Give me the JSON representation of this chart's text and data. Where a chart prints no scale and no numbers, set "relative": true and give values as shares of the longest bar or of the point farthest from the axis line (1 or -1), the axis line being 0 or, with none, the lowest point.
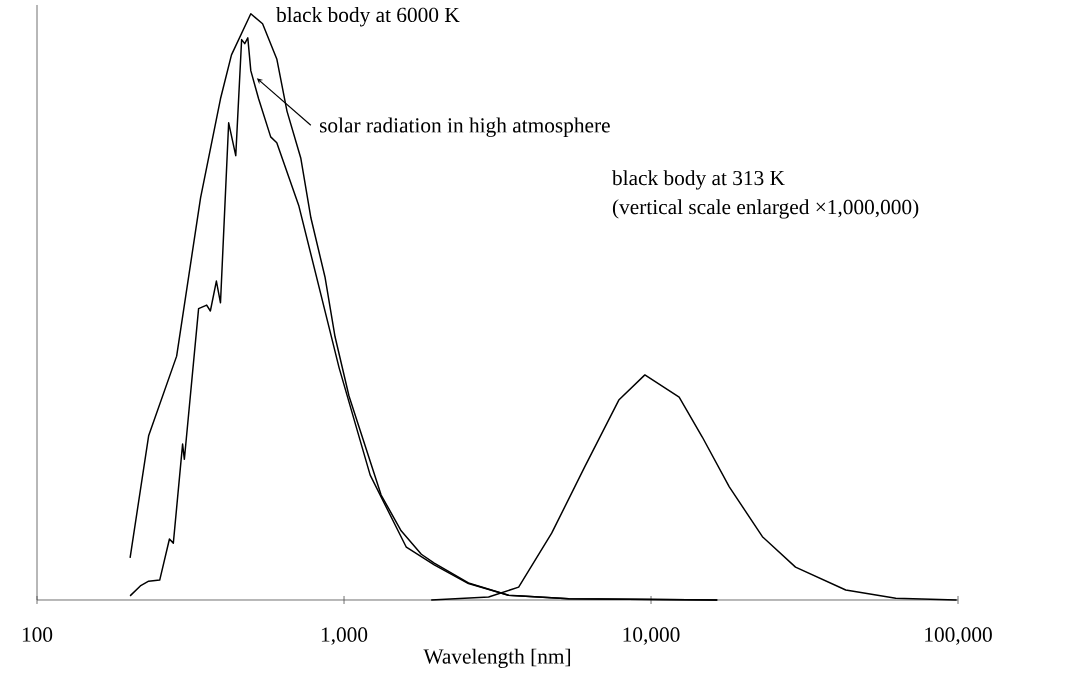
{
  "chart_data": {
    "type": "line",
    "relative": true,
    "log": "x",
    "xlabel": "Wavelength [nm]",
    "xlim": [
      100,
      100000
    ],
    "xticks": [
      100,
      {
        "value": 1000,
        "label": "1,000"
      },
      {
        "value": 10000,
        "label": "10,000"
      },
      {
        "value": 100000,
        "label": "100,000"
      }
    ],
    "series": [
      {
        "color": "#000000",
        "x": [
          201,
          231,
          285,
          341,
          396,
          430,
          497,
          543,
          604,
          652,
          723,
          780,
          867,
          935,
          1038,
          1321,
          1535,
          1786,
          1968,
          2543,
          3434,
          5395,
          16440
        ],
        "values": [
          0.072,
          0.28,
          0.416,
          0.686,
          0.855,
          0.93,
          1.0,
          0.983,
          0.923,
          0.834,
          0.754,
          0.652,
          0.551,
          0.449,
          0.348,
          0.179,
          0.118,
          0.078,
          0.063,
          0.029,
          0.008,
          0.002,
          0
        ]
      },
      {
        "color": "#000000",
        "x": [
          201,
          217,
          231,
          251,
          270,
          278,
          298,
          302,
          336,
          357,
          367,
          384,
          396,
          421,
          444,
          464,
          475,
          486,
          497,
          527,
          577,
          604,
          713,
          964,
          1217,
          1596,
          1968,
          2543,
          3434,
          5395,
          16440
        ],
        "values": [
          0.007,
          0.024,
          0.032,
          0.034,
          0.104,
          0.097,
          0.266,
          0.24,
          0.497,
          0.503,
          0.493,
          0.544,
          0.507,
          0.814,
          0.758,
          0.956,
          0.949,
          0.959,
          0.903,
          0.855,
          0.79,
          0.78,
          0.672,
          0.396,
          0.213,
          0.09,
          0.06,
          0.028,
          0.008,
          0.002,
          0
        ]
      },
      {
        "color": "#000000",
        "x": [
          1923,
          2958,
          3706,
          4747,
          6081,
          7855,
          9550,
          12350,
          14690,
          17990,
          23060,
          29560,
          43080,
          62690,
          99000
        ],
        "values": [
          0,
          0.005,
          0.022,
          0.114,
          0.227,
          0.341,
          0.384,
          0.346,
          0.278,
          0.193,
          0.108,
          0.056,
          0.017,
          0.003,
          0
        ]
      }
    ],
    "annotations": [
      {
        "text": "black body at 6000 K",
        "x": 497,
        "y": 1.0
      },
      {
        "text": "solar radiation in high atmosphere",
        "x": 520,
        "y": 0.89
      },
      "black body at 313 K",
      "(vertical scale enlarged ×1,000,000)"
    ]
  }
}
